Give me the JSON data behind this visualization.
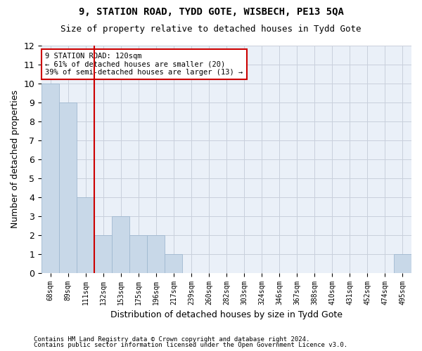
{
  "title1": "9, STATION ROAD, TYDD GOTE, WISBECH, PE13 5QA",
  "title2": "Size of property relative to detached houses in Tydd Gote",
  "xlabel": "Distribution of detached houses by size in Tydd Gote",
  "ylabel": "Number of detached properties",
  "footer1": "Contains HM Land Registry data © Crown copyright and database right 2024.",
  "footer2": "Contains public sector information licensed under the Open Government Licence v3.0.",
  "bin_labels": [
    "68sqm",
    "89sqm",
    "111sqm",
    "132sqm",
    "153sqm",
    "175sqm",
    "196sqm",
    "217sqm",
    "239sqm",
    "260sqm",
    "282sqm",
    "303sqm",
    "324sqm",
    "346sqm",
    "367sqm",
    "388sqm",
    "410sqm",
    "431sqm",
    "452sqm",
    "474sqm",
    "495sqm"
  ],
  "bar_values": [
    10,
    9,
    4,
    2,
    3,
    2,
    2,
    1,
    0,
    0,
    0,
    0,
    0,
    0,
    0,
    0,
    0,
    0,
    0,
    0,
    1
  ],
  "bar_color": "#c8d8e8",
  "bar_edge_color": "#a0b8d0",
  "ax_facecolor": "#eaf0f8",
  "ylim": [
    0,
    12
  ],
  "yticks": [
    0,
    1,
    2,
    3,
    4,
    5,
    6,
    7,
    8,
    9,
    10,
    11,
    12
  ],
  "vline_x": 2.5,
  "vline_color": "#cc0000",
  "annotation_text": "9 STATION ROAD: 120sqm\n← 61% of detached houses are smaller (20)\n39% of semi-detached houses are larger (13) →",
  "annotation_box_color": "#ffffff",
  "annotation_box_edge": "#cc0000",
  "background_color": "#ffffff",
  "grid_color": "#c8d0dc"
}
